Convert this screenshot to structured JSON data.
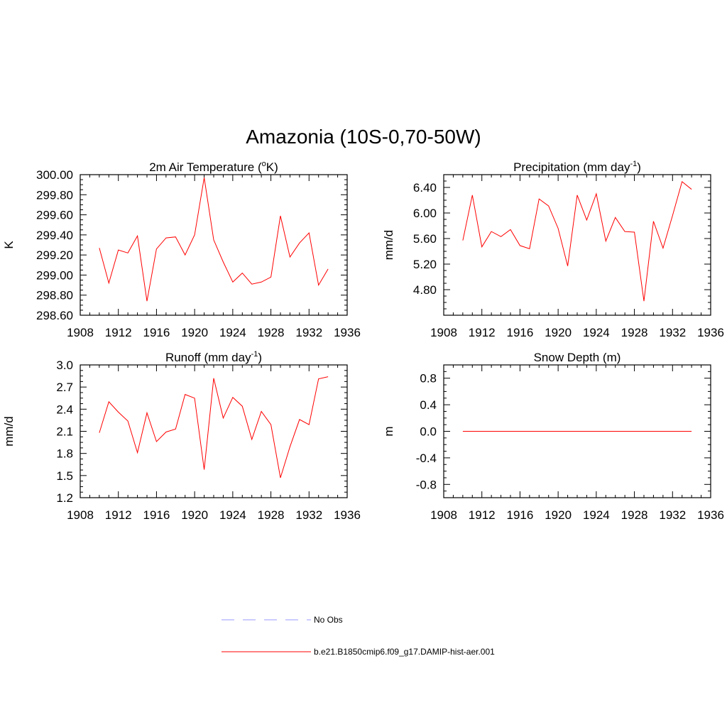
{
  "title": "Amazonia (10S-0,70-50W)",
  "colors": {
    "model": "#ff0000",
    "obs": "#9999ff",
    "axis": "#000000"
  },
  "legend": [
    {
      "label": "No Obs",
      "style": "dashed",
      "color": "#9999ff"
    },
    {
      "label": "b.e21.B1850cmip6.f09_g17.DAMIP-hist-aer.001",
      "style": "solid",
      "color": "#ff0000"
    }
  ],
  "chart_data": [
    {
      "type": "line",
      "title": "2m Air Temperature (",
      "title_sup": "o",
      "title_tail": "K)",
      "ylabel": "K",
      "xlim": [
        1908,
        1936
      ],
      "ylim": [
        298.6,
        300.0
      ],
      "xticks": [
        1908,
        1912,
        1916,
        1920,
        1924,
        1928,
        1932,
        1936
      ],
      "yticks": [
        "298.60",
        "298.80",
        "299.00",
        "299.20",
        "299.40",
        "299.60",
        "299.80",
        "300.00"
      ],
      "series": [
        {
          "x": [
            1910,
            1911,
            1912,
            1913,
            1914,
            1915,
            1916,
            1917,
            1918,
            1919,
            1920,
            1921,
            1922,
            1923,
            1924,
            1925,
            1926,
            1927,
            1928,
            1929,
            1930,
            1931,
            1932,
            1933,
            1934
          ],
          "values": [
            299.27,
            298.92,
            299.25,
            299.22,
            299.39,
            298.74,
            299.26,
            299.37,
            299.38,
            299.2,
            299.4,
            299.97,
            299.35,
            299.13,
            298.93,
            299.02,
            298.91,
            298.93,
            298.98,
            299.59,
            299.18,
            299.32,
            299.42,
            298.9,
            299.06
          ]
        }
      ]
    },
    {
      "type": "line",
      "title": "Precipitation (mm day",
      "title_sup": "-1",
      "title_tail": ")",
      "ylabel": "mm/d",
      "xlim": [
        1908,
        1936
      ],
      "ylim": [
        4.4,
        6.6
      ],
      "xticks": [
        1908,
        1912,
        1916,
        1920,
        1924,
        1928,
        1932,
        1936
      ],
      "yticks": [
        "4.80",
        "5.20",
        "5.60",
        "6.00",
        "6.40"
      ],
      "series": [
        {
          "x": [
            1910,
            1911,
            1912,
            1913,
            1914,
            1915,
            1916,
            1917,
            1918,
            1919,
            1920,
            1921,
            1922,
            1923,
            1924,
            1925,
            1926,
            1927,
            1928,
            1929,
            1930,
            1931,
            1932,
            1933,
            1934
          ],
          "values": [
            5.57,
            6.28,
            5.47,
            5.71,
            5.63,
            5.74,
            5.49,
            5.44,
            6.22,
            6.11,
            5.76,
            5.17,
            6.28,
            5.89,
            6.3,
            5.56,
            5.93,
            5.71,
            5.7,
            4.62,
            5.87,
            5.45,
            5.96,
            6.49,
            6.37
          ]
        }
      ]
    },
    {
      "type": "line",
      "title": "Runoff (mm day",
      "title_sup": "-1",
      "title_tail": ")",
      "ylabel": "mm/d",
      "xlim": [
        1908,
        1936
      ],
      "ylim": [
        1.2,
        3.0
      ],
      "xticks": [
        1908,
        1912,
        1916,
        1920,
        1924,
        1928,
        1932,
        1936
      ],
      "yticks": [
        "1.2",
        "1.5",
        "1.8",
        "2.1",
        "2.4",
        "2.7",
        "3.0"
      ],
      "series": [
        {
          "x": [
            1910,
            1911,
            1912,
            1913,
            1914,
            1915,
            1916,
            1917,
            1918,
            1919,
            1920,
            1921,
            1922,
            1923,
            1924,
            1925,
            1926,
            1927,
            1928,
            1929,
            1930,
            1931,
            1932,
            1933,
            1934
          ],
          "values": [
            2.08,
            2.5,
            2.36,
            2.24,
            1.81,
            2.35,
            1.96,
            2.09,
            2.13,
            2.6,
            2.55,
            1.58,
            2.82,
            2.28,
            2.56,
            2.44,
            1.99,
            2.37,
            2.19,
            1.47,
            1.89,
            2.26,
            2.19,
            2.81,
            2.84
          ]
        }
      ]
    },
    {
      "type": "line",
      "title": "Snow Depth (m)",
      "title_sup": "",
      "title_tail": "",
      "ylabel": "m",
      "xlim": [
        1908,
        1936
      ],
      "ylim": [
        -1.0,
        1.0
      ],
      "xticks": [
        1908,
        1912,
        1916,
        1920,
        1924,
        1928,
        1932,
        1936
      ],
      "yticks": [
        "-0.8",
        "-0.4",
        "0.0",
        "0.4",
        "0.8"
      ],
      "series": [
        {
          "x": [
            1910,
            1934
          ],
          "values": [
            0.0,
            0.0
          ]
        }
      ]
    }
  ]
}
